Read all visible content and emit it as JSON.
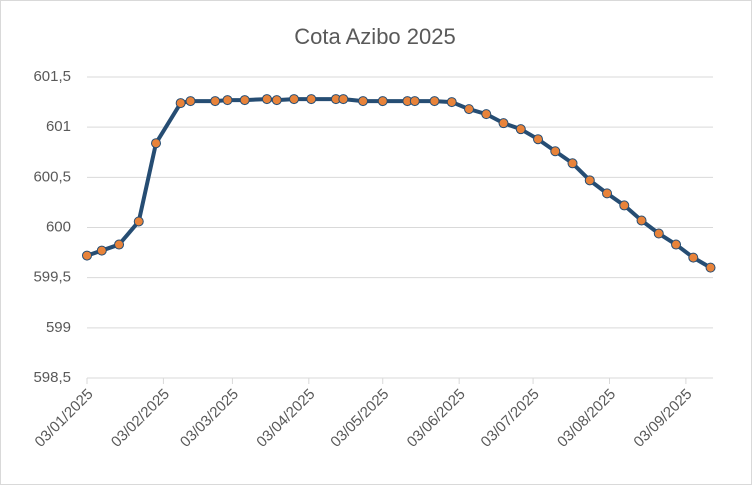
{
  "chart_data": {
    "type": "line",
    "title": "Cota Azibo 2025",
    "x": [
      "2025-01-03",
      "2025-01-09",
      "2025-01-16",
      "2025-01-24",
      "2025-01-31",
      "2025-02-10",
      "2025-02-14",
      "2025-02-24",
      "2025-03-01",
      "2025-03-08",
      "2025-03-17",
      "2025-03-21",
      "2025-03-28",
      "2025-04-04",
      "2025-04-14",
      "2025-04-17",
      "2025-04-25",
      "2025-05-03",
      "2025-05-13",
      "2025-05-16",
      "2025-05-24",
      "2025-05-31",
      "2025-06-07",
      "2025-06-14",
      "2025-06-21",
      "2025-06-28",
      "2025-07-05",
      "2025-07-12",
      "2025-07-19",
      "2025-07-26",
      "2025-08-02",
      "2025-08-09",
      "2025-08-16",
      "2025-08-23",
      "2025-08-30",
      "2025-09-06",
      "2025-09-13"
    ],
    "values": [
      599.72,
      599.77,
      599.83,
      600.06,
      600.84,
      601.24,
      601.26,
      601.26,
      601.27,
      601.27,
      601.28,
      601.27,
      601.28,
      601.28,
      601.28,
      601.28,
      601.26,
      601.26,
      601.26,
      601.26,
      601.26,
      601.25,
      601.18,
      601.13,
      601.04,
      600.98,
      600.88,
      600.76,
      600.64,
      600.47,
      600.34,
      600.22,
      600.07,
      599.94,
      599.83,
      599.7,
      599.6
    ],
    "color": "#264d73",
    "marker_color": "#e8833a",
    "xlim": [
      "2025-01-03",
      "2025-09-14"
    ],
    "xticks": [
      {
        "value": "2025-01-03",
        "label": "03/01/2025"
      },
      {
        "value": "2025-02-03",
        "label": "03/02/2025"
      },
      {
        "value": "2025-03-03",
        "label": "03/03/2025"
      },
      {
        "value": "2025-04-03",
        "label": "03/04/2025"
      },
      {
        "value": "2025-05-03",
        "label": "03/05/2025"
      },
      {
        "value": "2025-06-03",
        "label": "03/06/2025"
      },
      {
        "value": "2025-07-03",
        "label": "03/07/2025"
      },
      {
        "value": "2025-08-03",
        "label": "03/08/2025"
      },
      {
        "value": "2025-09-03",
        "label": "03/09/2025"
      }
    ],
    "ylim": [
      598.5,
      601.5
    ],
    "yticks": [
      {
        "value": 598.5,
        "label": "598,5"
      },
      599,
      {
        "value": 599.5,
        "label": "599,5"
      },
      600,
      {
        "value": 600.5,
        "label": "600,5"
      },
      601,
      {
        "value": 601.5,
        "label": "601,5"
      }
    ],
    "grid": true
  }
}
